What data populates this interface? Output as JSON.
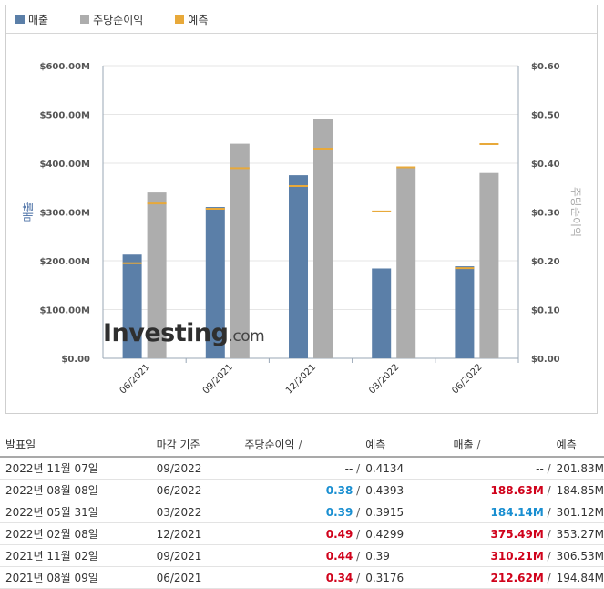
{
  "legend": [
    {
      "label": "매출",
      "color": "#5b7fa8"
    },
    {
      "label": "주당순이익",
      "color": "#adadad"
    },
    {
      "label": "예측",
      "color": "#e8a93a"
    }
  ],
  "chart_data": {
    "type": "bar",
    "categories": [
      "06/2021",
      "09/2021",
      "12/2021",
      "03/2022",
      "06/2022"
    ],
    "series": [
      {
        "name": "매출",
        "axis": "left",
        "values": [
          212.62,
          310.21,
          375.49,
          184.14,
          188.63
        ],
        "color": "#5b7fa8"
      },
      {
        "name": "주당순이익",
        "axis": "right",
        "values": [
          0.34,
          0.44,
          0.49,
          0.39,
          0.38
        ],
        "color": "#adadad"
      }
    ],
    "forecasts": {
      "revenue": [
        194.84,
        306.53,
        353.27,
        301.12,
        184.85
      ],
      "eps": [
        0.3176,
        0.39,
        0.4299,
        0.3915,
        0.4393
      ],
      "color": "#e8a93a"
    },
    "ylabel": "매출",
    "y2label": "주당순이익",
    "ylim": [
      0,
      600
    ],
    "y2lim": [
      0,
      0.6
    ],
    "yticks": [
      "$0.00",
      "$100.00M",
      "$200.00M",
      "$300.00M",
      "$400.00M",
      "$500.00M",
      "$600.00M"
    ],
    "y2ticks": [
      "$0.00",
      "$0.10",
      "$0.20",
      "$0.30",
      "$0.40",
      "$0.50",
      "$0.60"
    ],
    "grid": true
  },
  "watermark": {
    "main": "Investing",
    "suffix": ".com"
  },
  "table": {
    "headers": {
      "date": "발표일",
      "period": "마감 기준",
      "eps": "주당순이익",
      "eps_sep": "/",
      "eps_forecast": "예측",
      "revenue": "매출",
      "revenue_sep": "/",
      "revenue_forecast": "예측"
    },
    "rows": [
      {
        "date": "2022년 11월 07일",
        "period": "09/2022",
        "eps": "--",
        "eps_style": "plain",
        "eps_forecast": "0.4134",
        "revenue": "--",
        "revenue_style": "plain",
        "revenue_forecast": "201.83M"
      },
      {
        "date": "2022년 08월 08일",
        "period": "06/2022",
        "eps": "0.38",
        "eps_style": "blue",
        "eps_forecast": "0.4393",
        "revenue": "188.63M",
        "revenue_style": "red",
        "revenue_forecast": "184.85M"
      },
      {
        "date": "2022년 05월 31일",
        "period": "03/2022",
        "eps": "0.39",
        "eps_style": "blue",
        "eps_forecast": "0.3915",
        "revenue": "184.14M",
        "revenue_style": "blue",
        "revenue_forecast": "301.12M"
      },
      {
        "date": "2022년 02월 08일",
        "period": "12/2021",
        "eps": "0.49",
        "eps_style": "red",
        "eps_forecast": "0.4299",
        "revenue": "375.49M",
        "revenue_style": "red",
        "revenue_forecast": "353.27M"
      },
      {
        "date": "2021년 11월 02일",
        "period": "09/2021",
        "eps": "0.44",
        "eps_style": "red",
        "eps_forecast": "0.39",
        "revenue": "310.21M",
        "revenue_style": "red",
        "revenue_forecast": "306.53M"
      },
      {
        "date": "2021년 08월 09일",
        "period": "06/2021",
        "eps": "0.34",
        "eps_style": "red",
        "eps_forecast": "0.3176",
        "revenue": "212.62M",
        "revenue_style": "red",
        "revenue_forecast": "194.84M"
      }
    ]
  }
}
